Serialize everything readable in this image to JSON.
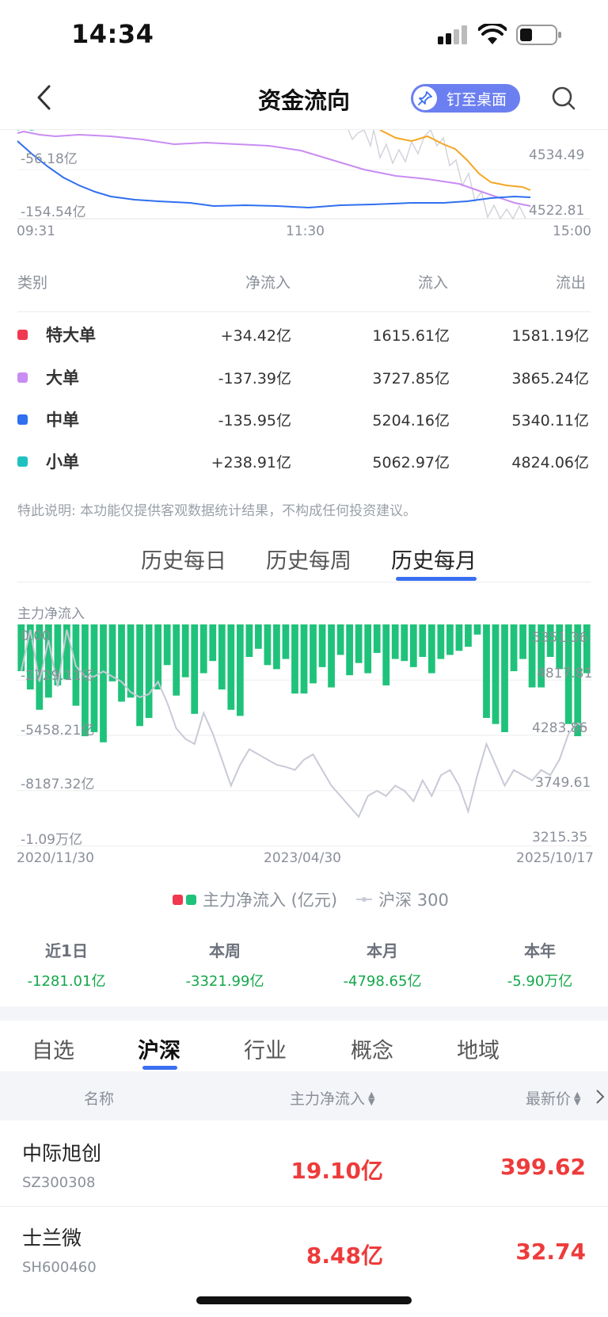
{
  "status": {
    "time": "14:34"
  },
  "nav": {
    "title": "资金流向",
    "pin_label": "钉至桌面"
  },
  "intraday": {
    "left_labels": [
      "-56.18亿",
      "-154.54亿"
    ],
    "right_labels": [
      "4534.49",
      "4522.81"
    ],
    "time_labels": [
      "09:31",
      "11:30",
      "15:00"
    ]
  },
  "table": {
    "headers": {
      "category": "类别",
      "net": "净流入",
      "inflow": "流入",
      "outflow": "流出"
    },
    "rows": [
      {
        "name": "特大单",
        "color": "#f0384f",
        "net": "+34.42亿",
        "net_sign": "pos",
        "inflow": "1615.61亿",
        "outflow": "1581.19亿"
      },
      {
        "name": "大单",
        "color": "#c98cf2",
        "net": "-137.39亿",
        "net_sign": "neg",
        "inflow": "3727.85亿",
        "outflow": "3865.24亿"
      },
      {
        "name": "中单",
        "color": "#2f6ff0",
        "net": "-135.95亿",
        "net_sign": "neg",
        "inflow": "5204.16亿",
        "outflow": "5340.11亿"
      },
      {
        "name": "小单",
        "color": "#21c0c0",
        "net": "+238.91亿",
        "net_sign": "pos",
        "inflow": "5062.97亿",
        "outflow": "4824.06亿"
      }
    ],
    "disclaimer": "特此说明: 本功能仅提供客观数据统计结果，不构成任何投资建议。"
  },
  "history_tabs": [
    "历史每日",
    "历史每周",
    "历史每月"
  ],
  "history_active": 2,
  "chart_data": {
    "type": "bar",
    "title": "主力净流入",
    "x_start": "2020/11/30",
    "x_mid": "2023/04/30",
    "x_end": "2025/10/17",
    "left_ticks": [
      "0.00",
      "-2729.11亿",
      "-5458.21亿",
      "-8187.32亿",
      "-1.09万亿"
    ],
    "right_ticks": [
      "5351.36",
      "4817.81",
      "4283.86",
      "3749.61",
      "3215.35"
    ],
    "ylim": [
      -10916.42,
      0
    ],
    "y2lim": [
      3215.35,
      5351.36
    ],
    "series": [
      {
        "name": "主力净流入 (亿元)",
        "values": [
          -2300,
          -3200,
          -4200,
          -3600,
          -3000,
          -2700,
          -4000,
          -5500,
          -5300,
          -5800,
          -2800,
          -3800,
          -3600,
          -5000,
          -4600,
          -3200,
          -2000,
          -3500,
          -2600,
          -4400,
          -2400,
          -1800,
          -3200,
          -4200,
          -4500,
          -1600,
          -1200,
          -2000,
          -2200,
          -1700,
          -3400,
          -3400,
          -2900,
          -2100,
          -3100,
          -1500,
          -2500,
          -1900,
          -2400,
          -1400,
          -3000,
          -1700,
          -1800,
          -2100,
          -1600,
          -2400,
          -1700,
          -1500,
          -1300,
          -1100,
          -500,
          -4600,
          -4900,
          -5300,
          -2300,
          -1700,
          -3100,
          -3100,
          -1600,
          -2200,
          -4900,
          -5500,
          -2400
        ]
      },
      {
        "name": "沪深 300",
        "values": [
          4900,
          5300,
          4800,
          5200,
          4750,
          5300,
          4950,
          4850,
          4850,
          4900,
          4850,
          4800,
          4700,
          4650,
          4680,
          4800,
          4600,
          4350,
          4250,
          4200,
          4500,
          4300,
          4050,
          3800,
          4000,
          4150,
          4100,
          4050,
          4000,
          3980,
          3950,
          4050,
          4100,
          3950,
          3800,
          3700,
          3600,
          3500,
          3700,
          3750,
          3700,
          3800,
          3750,
          3650,
          3850,
          3700,
          3900,
          3950,
          3800,
          3550,
          3900,
          4200,
          4000,
          3800,
          3950,
          3900,
          3850,
          3950,
          3900,
          4050,
          4300,
          4400,
          4350
        ]
      }
    ]
  },
  "legend": {
    "main_label": "主力净流入 (亿元)",
    "index_label": "沪深 300"
  },
  "summary": [
    {
      "label": "近1日",
      "value": "-1281.01亿"
    },
    {
      "label": "本周",
      "value": "-3321.99亿"
    },
    {
      "label": "本月",
      "value": "-4798.65亿"
    },
    {
      "label": "本年",
      "value": "-5.90万亿"
    }
  ],
  "category_tabs": [
    "自选",
    "沪深",
    "行业",
    "概念",
    "地域"
  ],
  "category_active": 1,
  "list_header": {
    "name": "名称",
    "net": "主力净流入",
    "price": "最新价"
  },
  "stocks": [
    {
      "name": "中际旭创",
      "code": "SZ300308",
      "net": "19.10亿",
      "price": "399.62"
    },
    {
      "name": "士兰微",
      "code": "SH600460",
      "net": "8.48亿",
      "price": "32.74"
    }
  ],
  "colors": {
    "accent": "#3a6ff0",
    "up": "#ee3b3b",
    "down": "#14a74b",
    "bar": "#1fc27a",
    "index_line": "#c8cad6"
  }
}
